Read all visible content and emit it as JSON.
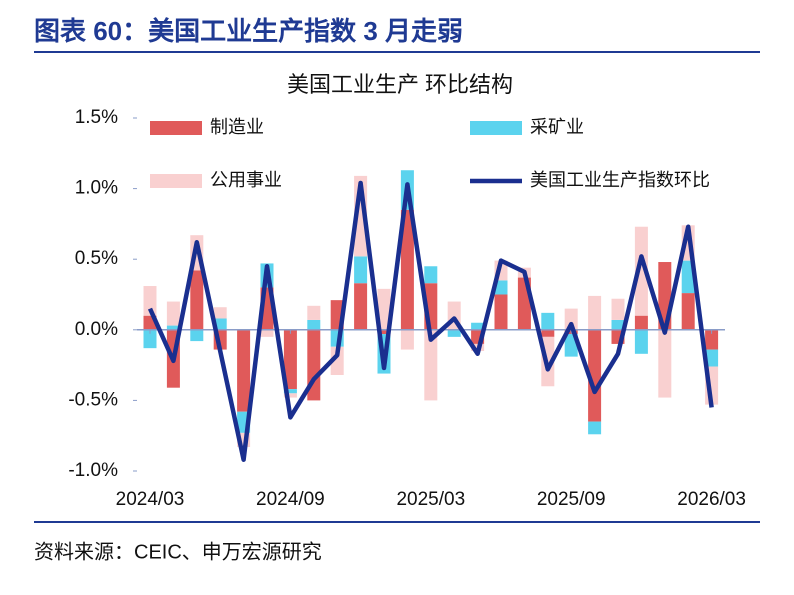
{
  "header": {
    "title": "图表 60：美国工业生产指数 3 月走弱"
  },
  "chart_data": {
    "type": "bar",
    "stacked": true,
    "title": "美国工业生产 环比结构",
    "categories": [
      "2024/03",
      null,
      null,
      null,
      null,
      null,
      "2024/09",
      null,
      null,
      null,
      null,
      null,
      "2025/03",
      null,
      null,
      null,
      null,
      null,
      "2025/09",
      null,
      null,
      null,
      null,
      null,
      "2026/03"
    ],
    "series": [
      {
        "name": "制造业",
        "type": "bar",
        "color": "#e05a5a",
        "values": [
          0.1,
          -0.41,
          0.42,
          -0.14,
          -0.58,
          0.3,
          -0.42,
          -0.5,
          0.21,
          0.33,
          -0.03,
          0.85,
          0.33,
          0.0,
          -0.1,
          0.25,
          0.37,
          -0.05,
          -0.03,
          -0.65,
          -0.1,
          0.1,
          0.48,
          0.26,
          -0.14
        ]
      },
      {
        "name": "采矿业",
        "type": "bar",
        "color": "#5bd3ee",
        "values": [
          -0.13,
          0.03,
          -0.08,
          0.08,
          -0.15,
          0.17,
          -0.03,
          0.07,
          -0.12,
          0.19,
          -0.28,
          0.28,
          0.12,
          -0.05,
          0.05,
          0.1,
          0.0,
          0.12,
          -0.16,
          -0.09,
          0.07,
          -0.17,
          0.0,
          0.23,
          -0.12
        ]
      },
      {
        "name": "公用事业",
        "type": "bar",
        "color": "#f9d0d0",
        "values": [
          0.21,
          0.17,
          0.25,
          0.08,
          -0.1,
          -0.05,
          -0.03,
          0.1,
          -0.2,
          0.57,
          0.29,
          -0.14,
          -0.5,
          0.2,
          -0.05,
          0.14,
          0.07,
          -0.35,
          0.15,
          0.24,
          0.15,
          0.63,
          -0.48,
          0.25,
          -0.27
        ]
      },
      {
        "name": "美国工业生产指数环比",
        "type": "line",
        "color": "#1a2f8f",
        "values": [
          0.15,
          -0.22,
          0.62,
          -0.15,
          -0.92,
          0.45,
          -0.62,
          -0.35,
          -0.18,
          1.04,
          -0.27,
          1.03,
          -0.07,
          0.08,
          -0.17,
          0.49,
          0.41,
          -0.28,
          0.04,
          -0.44,
          -0.17,
          0.52,
          -0.02,
          0.73,
          -0.55
        ]
      }
    ],
    "ylim": [
      -1.0,
      1.5
    ],
    "yticks": [
      {
        "value": 1.5,
        "label": "1.5%"
      },
      {
        "value": 1.0,
        "label": "1.0%"
      },
      {
        "value": 0.5,
        "label": "0.5%"
      },
      {
        "value": 0.0,
        "label": "0.0%"
      },
      {
        "value": -0.5,
        "label": "-0.5%"
      },
      {
        "value": -1.0,
        "label": "-1.0%"
      }
    ]
  },
  "footer": {
    "source": "资料来源：CEIC、申万宏源研究"
  }
}
